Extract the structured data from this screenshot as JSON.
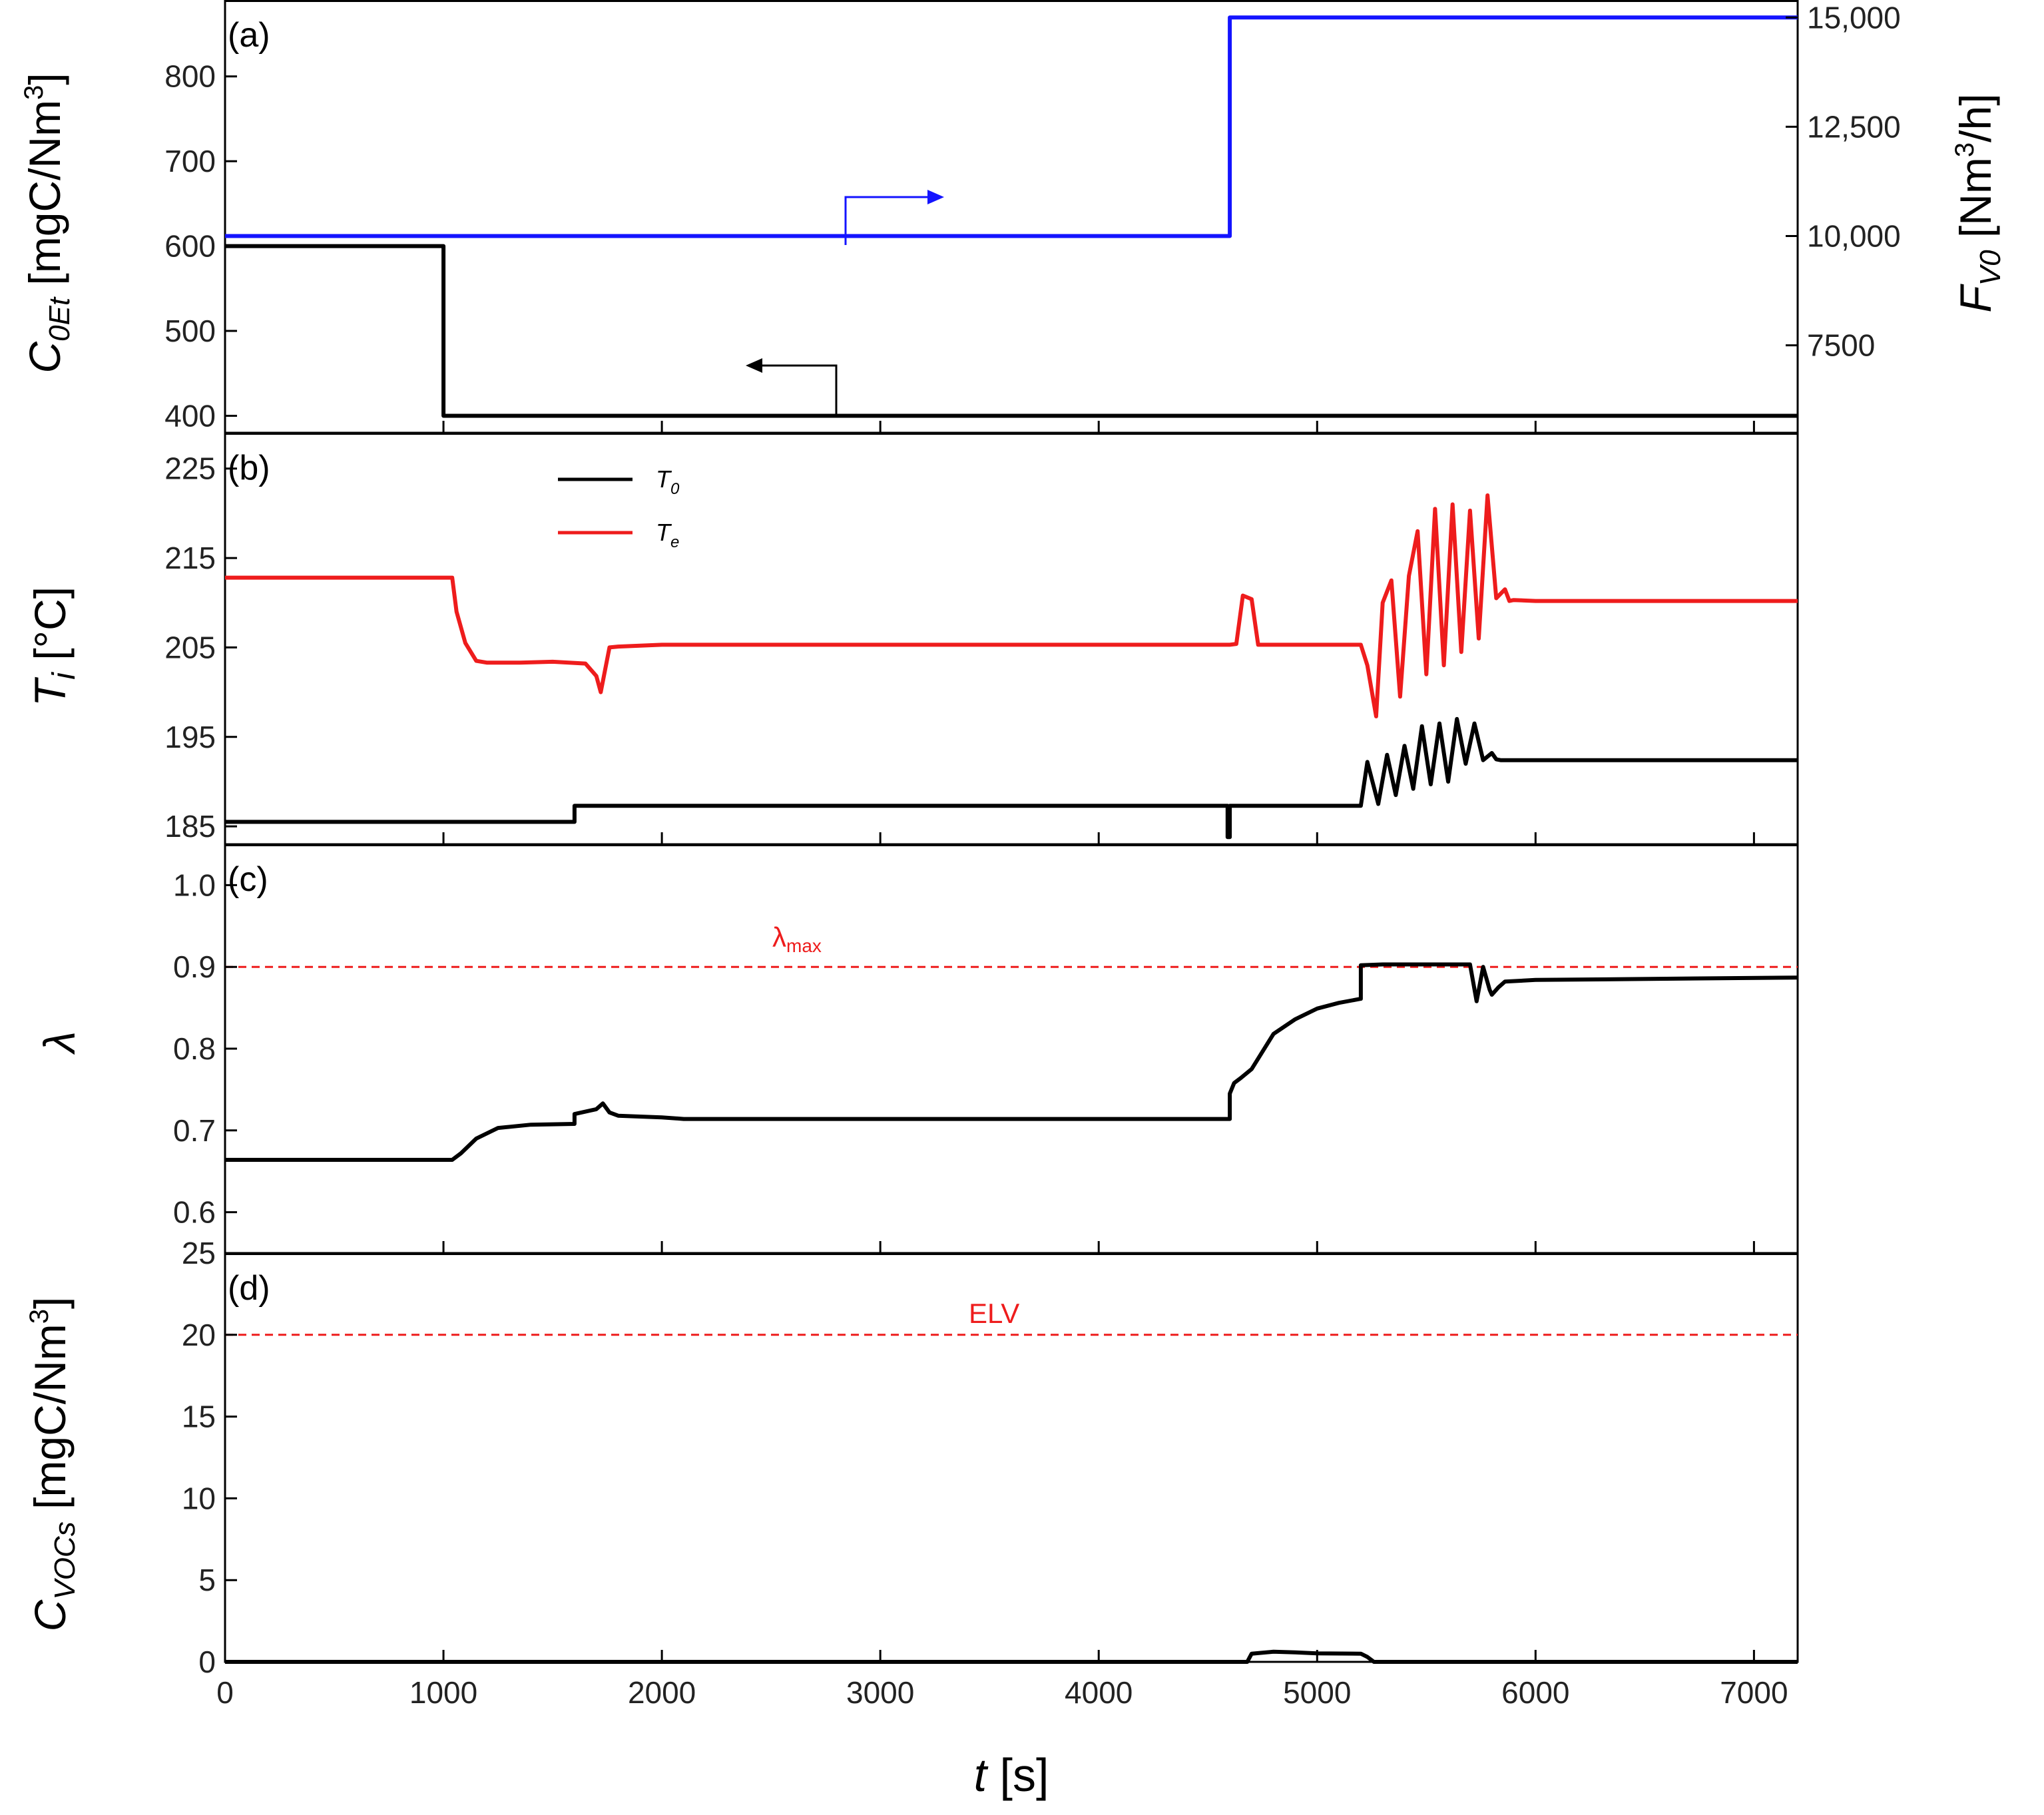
{
  "chart_data": [
    {
      "panel": "(a)",
      "type": "line",
      "xlim": [
        0,
        7200
      ],
      "x_ticks": [
        0,
        1000,
        2000,
        3000,
        4000,
        5000,
        6000,
        7000
      ],
      "y_left": {
        "label_symbol": "C",
        "label_sub": "0Et",
        "label_unit": " [mgC/Nm",
        "label_sup": "3",
        "label_close": "]",
        "lim": [
          380,
          890
        ],
        "ticks": [
          400,
          500,
          600,
          700,
          800
        ],
        "tick_labels": [
          "400",
          "500",
          "600",
          "700",
          "800"
        ]
      },
      "y_right": {
        "label_symbol": "F",
        "label_sub": "V0",
        "label_unit": " [Nm",
        "label_sup": "3",
        "label_close": "/h]",
        "lim": [
          5500,
          15400
        ],
        "ticks": [
          7500,
          10000,
          12500,
          15000
        ],
        "tick_labels": [
          "7500",
          "10,000",
          "12,500",
          "15,000"
        ]
      },
      "series": [
        {
          "name": "C0Et",
          "axis": "left",
          "color": "#000000",
          "x": [
            0,
            1000,
            1000,
            7200
          ],
          "y": [
            600,
            600,
            400,
            400
          ]
        },
        {
          "name": "FV0",
          "axis": "right",
          "color": "#1414ff",
          "x": [
            0,
            4600,
            4600,
            7200
          ],
          "y": [
            10000,
            10000,
            15000,
            15000
          ]
        }
      ]
    },
    {
      "panel": "(b)",
      "type": "line",
      "xlim": [
        0,
        7200
      ],
      "y": {
        "label_symbol": "T",
        "label_sub": "i",
        "label_unit": " [°C]",
        "lim": [
          183,
          229
        ],
        "ticks": [
          185,
          195,
          205,
          215,
          225
        ],
        "tick_labels": [
          "185",
          "195",
          "205",
          "215",
          "225"
        ]
      },
      "legend": [
        {
          "label": "T",
          "sub": "0",
          "color": "#000000"
        },
        {
          "label": "T",
          "sub": "e",
          "color": "#ee1c1c"
        }
      ],
      "series": [
        {
          "name": "T0",
          "color": "#000000",
          "x": [
            0,
            1600,
            1600,
            4590,
            4590,
            4600,
            4600,
            5200,
            5230,
            5280,
            5320,
            5360,
            5400,
            5440,
            5480,
            5520,
            5560,
            5600,
            5640,
            5680,
            5720,
            5760,
            5800,
            5820,
            5840,
            7200
          ],
          "y": [
            185.5,
            185.5,
            187.3,
            187.3,
            183.8,
            183.8,
            187.3,
            187.3,
            192.2,
            187.5,
            193.0,
            188.5,
            194.0,
            189.2,
            196.2,
            189.7,
            196.5,
            190.0,
            197.0,
            192.0,
            196.5,
            192.4,
            193.2,
            192.5,
            192.4,
            192.4
          ]
        },
        {
          "name": "Te",
          "color": "#ee1c1c",
          "x": [
            0,
            1040,
            1060,
            1100,
            1150,
            1200,
            1350,
            1500,
            1650,
            1700,
            1720,
            1760,
            1800,
            2000,
            4600,
            4630,
            4660,
            4700,
            4730,
            4760,
            4800,
            5200,
            5230,
            5270,
            5300,
            5340,
            5380,
            5420,
            5460,
            5500,
            5540,
            5580,
            5620,
            5660,
            5700,
            5740,
            5780,
            5820,
            5860,
            5880,
            5900,
            6000,
            7200
          ],
          "y": [
            212.8,
            212.8,
            209.0,
            205.5,
            203.5,
            203.3,
            203.3,
            203.4,
            203.2,
            201.8,
            200.0,
            205.0,
            205.1,
            205.3,
            205.3,
            205.4,
            210.8,
            210.4,
            205.3,
            205.3,
            205.3,
            205.3,
            203.0,
            197.3,
            210.0,
            212.5,
            199.5,
            213.0,
            218.0,
            202.0,
            220.5,
            203.0,
            221.0,
            204.5,
            220.3,
            206.0,
            222.0,
            210.5,
            211.5,
            210.2,
            210.3,
            210.2,
            210.2
          ]
        }
      ]
    },
    {
      "panel": "(c)",
      "type": "line",
      "xlim": [
        0,
        7200
      ],
      "y": {
        "label": "λ",
        "lim": [
          0.55,
          1.05
        ],
        "ticks": [
          0.6,
          0.7,
          0.8,
          0.9,
          1.0
        ],
        "tick_labels": [
          "0.6",
          "0.7",
          "0.8",
          "0.9",
          "1.0"
        ]
      },
      "reference": {
        "label": "λ",
        "label_sub": "max",
        "value": 0.9,
        "color": "#ee1c1c"
      },
      "series": [
        {
          "name": "lambda",
          "color": "#000000",
          "x": [
            0,
            1040,
            1080,
            1150,
            1250,
            1400,
            1600,
            1600,
            1700,
            1730,
            1760,
            1800,
            2000,
            2100,
            4600,
            4600,
            4620,
            4650,
            4700,
            4800,
            4900,
            5000,
            5100,
            5200,
            5200,
            5300,
            5700,
            5730,
            5760,
            5790,
            5800,
            5830,
            5860,
            6000,
            7200
          ],
          "y": [
            0.664,
            0.664,
            0.672,
            0.69,
            0.703,
            0.707,
            0.708,
            0.72,
            0.726,
            0.733,
            0.722,
            0.718,
            0.716,
            0.714,
            0.714,
            0.745,
            0.758,
            0.764,
            0.775,
            0.818,
            0.836,
            0.849,
            0.856,
            0.861,
            0.902,
            0.903,
            0.903,
            0.858,
            0.9,
            0.872,
            0.866,
            0.875,
            0.882,
            0.884,
            0.887
          ]
        }
      ]
    },
    {
      "panel": "(d)",
      "type": "line",
      "xlim": [
        0,
        7200
      ],
      "xlabel_symbol": "t",
      "xlabel_unit": " [s]",
      "x_tick_labels": [
        "0",
        "1000",
        "2000",
        "3000",
        "4000",
        "5000",
        "6000",
        "7000"
      ],
      "y": {
        "label_symbol": "C",
        "label_sub": "VOCs",
        "label_unit": " [mgC/Nm",
        "label_sup": "3",
        "label_close": "]",
        "lim": [
          0,
          25
        ],
        "ticks": [
          0,
          5,
          10,
          15,
          20,
          25
        ],
        "tick_labels": [
          "0",
          "5",
          "10",
          "15",
          "20",
          "25"
        ]
      },
      "reference": {
        "label": "ELV",
        "value": 20,
        "color": "#ee1c1c"
      },
      "series": [
        {
          "name": "CVOCs",
          "color": "#000000",
          "x": [
            0,
            4680,
            4700,
            4800,
            4900,
            5000,
            5200,
            5230,
            5260,
            7200
          ],
          "y": [
            0,
            0,
            0.5,
            0.62,
            0.58,
            0.52,
            0.5,
            0.3,
            0,
            0
          ]
        }
      ]
    }
  ]
}
